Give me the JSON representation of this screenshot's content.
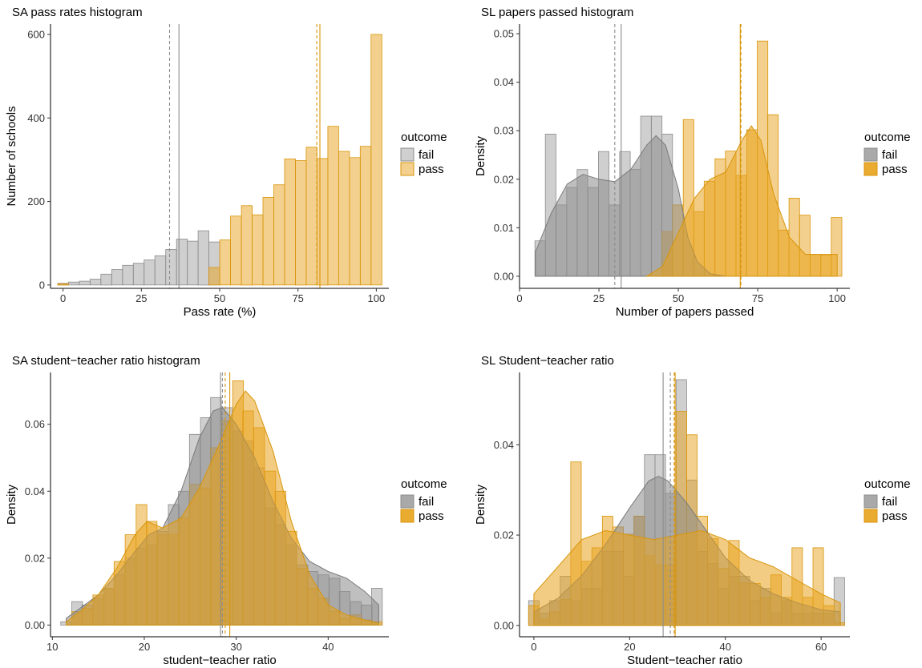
{
  "colors": {
    "fail_fill": "#a0a0a0",
    "fail_stroke": "#8c8c8c",
    "pass_fill": "#E8A21B",
    "pass_stroke": "#D8950A"
  },
  "chart_data": [
    {
      "type": "bar",
      "title": "SA pass rates histogram",
      "xlabel": "Pass rate (%)",
      "ylabel": "Number of schools",
      "xlim": [
        -4,
        104
      ],
      "ylim": [
        -8,
        625
      ],
      "xticks": [
        0,
        25,
        50,
        75,
        100
      ],
      "yticks": [
        0,
        200,
        400,
        600
      ],
      "bin_width": 3.45,
      "legend": {
        "title": "outcome",
        "entries": [
          "fail",
          "pass"
        ],
        "position": "right"
      },
      "series": [
        {
          "name": "fail",
          "x": [
            0,
            3.45,
            6.9,
            10.35,
            13.8,
            17.25,
            20.7,
            24.15,
            27.6,
            31.05,
            34.5,
            37.95,
            41.4,
            44.85,
            48.3
          ],
          "values": [
            4,
            7,
            9,
            14,
            26,
            37,
            47,
            52,
            60,
            70,
            85,
            110,
            105,
            130,
            103
          ]
        },
        {
          "name": "pass",
          "x": [
            0,
            48.3,
            51.75,
            55.2,
            58.65,
            62.1,
            65.55,
            69,
            72.45,
            75.9,
            79.35,
            82.8,
            86.25,
            89.7,
            93.15,
            96.6,
            100.05
          ],
          "values": [
            3,
            42,
            108,
            165,
            190,
            168,
            210,
            240,
            302,
            298,
            330,
            303,
            380,
            320,
            305,
            332,
            600
          ]
        }
      ],
      "vlines": {
        "fail_mean": 37,
        "fail_median": 34,
        "pass_mean": 82,
        "pass_median": 81
      }
    },
    {
      "type": "bar",
      "title": "SL papers passed histogram",
      "xlabel": "Number of papers passed",
      "ylabel": "Density",
      "xlim": [
        0,
        104
      ],
      "ylim": [
        -0.0025,
        0.052
      ],
      "xticks": [
        0,
        25,
        50,
        75,
        100
      ],
      "yticks": [
        0,
        0.01,
        0.02,
        0.03,
        0.04,
        0.05
      ],
      "ytick_labels": [
        "0.00",
        "0.01",
        "0.02",
        "0.03",
        "0.04",
        "0.05"
      ],
      "bin_width": 3.33,
      "legend": {
        "title": "outcome",
        "entries": [
          "fail",
          "pass"
        ],
        "position": "right"
      },
      "series": [
        {
          "name": "fail",
          "x": [
            6.5,
            9.8,
            13.2,
            16.5,
            19.8,
            23.2,
            26.5,
            29.8,
            33.2,
            36.5,
            39.8,
            43.2,
            46.5
          ],
          "values": [
            0.0073,
            0.0293,
            0.0147,
            0.0183,
            0.022,
            0.0183,
            0.0257,
            0.0147,
            0.0257,
            0.022,
            0.033,
            0.033,
            0.0293
          ]
        },
        {
          "name": "pass",
          "x": [
            46.5,
            49.8,
            53.2,
            56.5,
            59.8,
            63.2,
            66.5,
            69.8,
            73.2,
            76.5,
            79.8,
            83.2,
            86.5,
            89.8,
            93.2,
            96.5,
            99.8
          ],
          "values": [
            0.0092,
            0.0147,
            0.0323,
            0.0133,
            0.0196,
            0.0242,
            0.0258,
            0.0208,
            0.0302,
            0.0485,
            0.0333,
            0.0095,
            0.0161,
            0.0126,
            0.0045,
            0.0044,
            0.0121
          ]
        }
      ],
      "density": {
        "fail": [
          [
            5,
            0.005
          ],
          [
            10,
            0.013
          ],
          [
            15,
            0.019
          ],
          [
            20,
            0.021
          ],
          [
            25,
            0.02
          ],
          [
            30,
            0.0195
          ],
          [
            35,
            0.022
          ],
          [
            40,
            0.027
          ],
          [
            43,
            0.029
          ],
          [
            46,
            0.027
          ],
          [
            50,
            0.018
          ],
          [
            53,
            0.008
          ],
          [
            56,
            0.003
          ],
          [
            60,
            0.0005
          ],
          [
            65,
            0
          ]
        ],
        "pass": [
          [
            40,
            0
          ],
          [
            45,
            0.002
          ],
          [
            50,
            0.009
          ],
          [
            55,
            0.016
          ],
          [
            60,
            0.02
          ],
          [
            65,
            0.0215
          ],
          [
            70,
            0.028
          ],
          [
            73,
            0.031
          ],
          [
            76,
            0.028
          ],
          [
            80,
            0.017
          ],
          [
            85,
            0.008
          ],
          [
            90,
            0.0045
          ],
          [
            95,
            0.0045
          ],
          [
            100,
            0.0045
          ]
        ]
      },
      "vlines": {
        "fail_mean": 32,
        "fail_median": 30,
        "pass_mean": 69.5,
        "pass_median": 69.7
      }
    },
    {
      "type": "bar",
      "title": "SA student−teacher ratio histogram",
      "xlabel": "student−teacher ratio",
      "ylabel": "Density",
      "xlim": [
        9.8,
        46.6
      ],
      "ylim": [
        -0.0035,
        0.0755
      ],
      "xticks": [
        10,
        20,
        30,
        40
      ],
      "yticks": [
        0,
        0.02,
        0.04,
        0.06
      ],
      "ytick_labels": [
        "0.00",
        "0.02",
        "0.04",
        "0.06"
      ],
      "bin_width": 1.17,
      "legend": {
        "title": "outcome",
        "entries": [
          "fail",
          "pass"
        ],
        "position": "right"
      },
      "series": [
        {
          "name": "fail",
          "x": [
            11.5,
            12.7,
            13.8,
            15.0,
            16.2,
            17.3,
            18.5,
            19.7,
            20.8,
            22.0,
            23.2,
            24.3,
            25.5,
            26.7,
            27.8,
            29.0,
            30.2,
            31.3,
            32.5,
            33.7,
            34.8,
            36.0,
            37.2,
            38.3,
            39.5,
            40.7,
            41.8,
            43.0,
            44.2,
            45.3
          ],
          "values": [
            0.001,
            0.007,
            0.006,
            0.008,
            0.011,
            0.015,
            0.02,
            0.023,
            0.024,
            0.028,
            0.036,
            0.04,
            0.057,
            0.062,
            0.068,
            0.065,
            0.058,
            0.055,
            0.047,
            0.035,
            0.03,
            0.024,
            0.018,
            0.016,
            0.015,
            0.014,
            0.01,
            0.007,
            0.006,
            0.011
          ]
        },
        {
          "name": "pass",
          "x": [
            12.7,
            13.8,
            15.0,
            16.2,
            17.3,
            18.5,
            19.7,
            20.8,
            22.0,
            23.2,
            24.3,
            25.5,
            26.7,
            27.8,
            29.0,
            30.2,
            31.3,
            32.5,
            33.7,
            34.8,
            36.0,
            37.2,
            38.3,
            39.5,
            40.7,
            41.8,
            43.0,
            44.2,
            45.3
          ],
          "values": [
            0.004,
            0.005,
            0.009,
            0.011,
            0.019,
            0.027,
            0.036,
            0.031,
            0.027,
            0.027,
            0.032,
            0.042,
            0.041,
            0.053,
            0.061,
            0.073,
            0.064,
            0.059,
            0.046,
            0.04,
            0.028,
            0.017,
            0.011,
            0.008,
            0.004,
            0.002,
            0.003,
            0.0015,
            0.001
          ]
        }
      ],
      "density": {
        "fail": [
          [
            11.5,
            0.002
          ],
          [
            13,
            0.005
          ],
          [
            15,
            0.009
          ],
          [
            17,
            0.015
          ],
          [
            19,
            0.022
          ],
          [
            20.5,
            0.027
          ],
          [
            22,
            0.029
          ],
          [
            24,
            0.04
          ],
          [
            26,
            0.056
          ],
          [
            27.5,
            0.064
          ],
          [
            28.5,
            0.065
          ],
          [
            30,
            0.06
          ],
          [
            32,
            0.05
          ],
          [
            34,
            0.037
          ],
          [
            36,
            0.026
          ],
          [
            38,
            0.019
          ],
          [
            40,
            0.016
          ],
          [
            42,
            0.014
          ],
          [
            44,
            0.01
          ],
          [
            45.5,
            0.006
          ]
        ],
        "pass": [
          [
            11.5,
            0.001
          ],
          [
            13,
            0.004
          ],
          [
            15,
            0.009
          ],
          [
            17,
            0.017
          ],
          [
            19,
            0.027
          ],
          [
            20.3,
            0.031
          ],
          [
            22,
            0.029
          ],
          [
            24,
            0.032
          ],
          [
            26,
            0.041
          ],
          [
            28,
            0.053
          ],
          [
            30,
            0.066
          ],
          [
            31,
            0.07
          ],
          [
            32,
            0.067
          ],
          [
            34,
            0.052
          ],
          [
            36,
            0.031
          ],
          [
            38,
            0.015
          ],
          [
            40,
            0.006
          ],
          [
            42,
            0.003
          ],
          [
            44,
            0.0015
          ],
          [
            45.5,
            0.0005
          ]
        ]
      },
      "vlines": {
        "fail_mean": 28.3,
        "fail_median": 28.5,
        "pass_mean": 29.3,
        "pass_median": 28.8
      }
    },
    {
      "type": "bar",
      "title": "SL Student−teacher ratio",
      "xlabel": "Student−teacher ratio",
      "ylabel": "Density",
      "xlim": [
        -3,
        66
      ],
      "ylim": [
        -0.0025,
        0.056
      ],
      "xticks": [
        0,
        20,
        40,
        60
      ],
      "yticks": [
        0,
        0.02,
        0.04
      ],
      "ytick_labels": [
        "0.00",
        "0.02",
        "0.04"
      ],
      "bin_width": 2.2,
      "legend": {
        "title": "outcome",
        "entries": [
          "fail",
          "pass"
        ],
        "position": "right"
      },
      "series": [
        {
          "name": "fail",
          "x": [
            0,
            2.2,
            4.4,
            6.6,
            8.8,
            11,
            13.2,
            15.4,
            17.6,
            19.8,
            22,
            24.2,
            26.4,
            28.6,
            30.8,
            33,
            35.2,
            37.4,
            39.6,
            41.8,
            44,
            46.2,
            48.4,
            50.6,
            52.8,
            55,
            57.2,
            59.4,
            61.6,
            63.8
          ],
          "values": [
            0.0055,
            0.0027,
            0.0055,
            0.0109,
            0.0055,
            0.0082,
            0.0082,
            0.0164,
            0.0164,
            0.0109,
            0.0242,
            0.0378,
            0.0378,
            0.0292,
            0.0544,
            0.0322,
            0.0164,
            0.0137,
            0.0082,
            0.0109,
            0.0109,
            0.0055,
            0.0082,
            0.0027,
            0.0055,
            0.0027,
            0.0027,
            0.0027,
            0.0027,
            0.0106
          ]
        },
        {
          "name": "pass",
          "x": [
            0,
            2.2,
            4.4,
            6.6,
            8.8,
            11,
            13.2,
            15.4,
            17.6,
            19.8,
            22,
            24.2,
            26.4,
            28.6,
            30.8,
            33,
            35.2,
            37.4,
            39.6,
            41.8,
            44,
            46.2,
            48.4,
            50.6,
            52.8,
            55,
            57.2,
            59.4,
            61.6,
            63.8
          ],
          "values": [
            0.0044,
            0.0014,
            0.003,
            0.0057,
            0.0362,
            0.0142,
            0.0172,
            0.0242,
            0.0218,
            0.0202,
            0.0242,
            0.0154,
            0.0134,
            0.0132,
            0.0474,
            0.0422,
            0.0242,
            0.0192,
            0.0126,
            0.0188,
            0.0094,
            0.0093,
            0.0062,
            0.0112,
            0.0062,
            0.0172,
            0.0062,
            0.0172,
            0.0044,
            0.0006
          ]
        }
      ],
      "density": {
        "fail": [
          [
            0,
            0.003
          ],
          [
            5,
            0.006
          ],
          [
            10,
            0.011
          ],
          [
            15,
            0.018
          ],
          [
            20,
            0.026
          ],
          [
            24,
            0.032
          ],
          [
            26,
            0.033
          ],
          [
            28,
            0.032
          ],
          [
            32,
            0.027
          ],
          [
            36,
            0.021
          ],
          [
            40,
            0.015
          ],
          [
            45,
            0.01
          ],
          [
            50,
            0.007
          ],
          [
            55,
            0.005
          ],
          [
            60,
            0.0035
          ],
          [
            64,
            0.003
          ]
        ],
        "pass": [
          [
            0,
            0.007
          ],
          [
            5,
            0.013
          ],
          [
            10,
            0.019
          ],
          [
            15,
            0.021
          ],
          [
            20,
            0.02
          ],
          [
            25,
            0.019
          ],
          [
            30,
            0.02
          ],
          [
            35,
            0.021
          ],
          [
            40,
            0.019
          ],
          [
            45,
            0.015
          ],
          [
            50,
            0.013
          ],
          [
            55,
            0.01
          ],
          [
            60,
            0.007
          ],
          [
            64,
            0.005
          ]
        ]
      },
      "vlines": {
        "fail_mean": 27,
        "fail_median": 28.5,
        "pass_mean": 29.5,
        "pass_median": 29.3
      }
    }
  ]
}
